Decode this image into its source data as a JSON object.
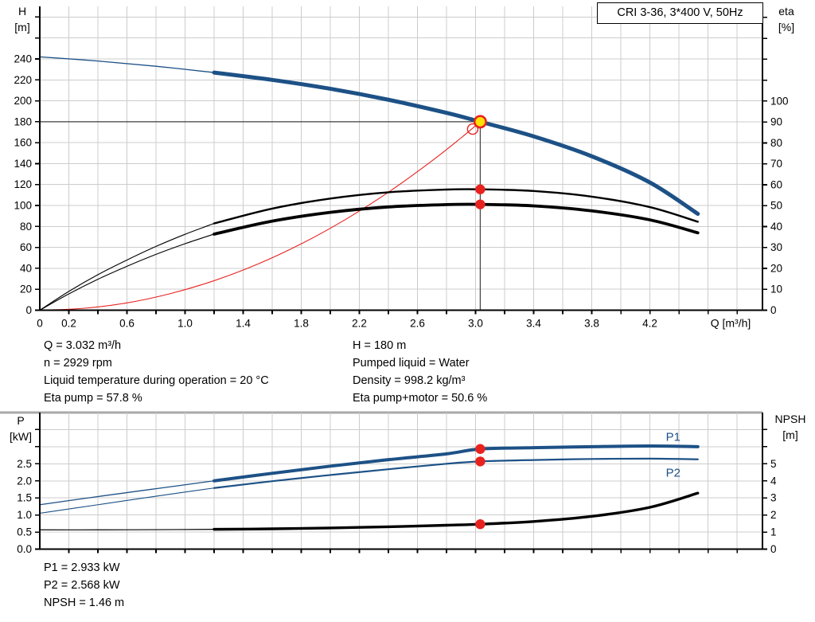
{
  "title_box": {
    "text": "CRI 3-36, 3*400 V, 50Hz"
  },
  "colors": {
    "blue": "#1d5186",
    "red": "#e8231f",
    "yellow": "#ffe200",
    "grid": "#cccccc",
    "axis": "#000000",
    "separator": "#a8a8a8",
    "crosshair": "#3d3d3d"
  },
  "info_left": {
    "lines": [
      "Q = 3.032 m³/h",
      "n = 2929 rpm",
      "Liquid temperature during operation = 20 °C",
      "Eta pump = 57.8 %"
    ]
  },
  "info_right": {
    "lines": [
      "H = 180 m",
      "Pumped liquid = Water",
      "Density = 998.2 kg/m³",
      "Eta pump+motor = 50.6 %"
    ]
  },
  "info_power": {
    "lines": [
      "P1 = 2.933 kW",
      "P2 = 2.568 kW",
      "NPSH = 1.46 m"
    ]
  },
  "chart_data": [
    {
      "type": "line",
      "name": "qh-eta-chart",
      "grid": true,
      "duty_point": {
        "q": 3.032,
        "h": 180,
        "crosshair": true
      },
      "x_axis": {
        "title": "Q [m³/h]",
        "min": 0,
        "max": 4.975,
        "grid_step": 0.2,
        "tick_step": 0.2,
        "labels": [
          [
            "0",
            0
          ],
          [
            "0.2",
            0.2
          ],
          [
            "0.6",
            0.6
          ],
          [
            "1.0",
            1.0
          ],
          [
            "1.4",
            1.4
          ],
          [
            "1.8",
            1.8
          ],
          [
            "2.2",
            2.2
          ],
          [
            "2.6",
            2.6
          ],
          [
            "3.0",
            3.0
          ],
          [
            "3.4",
            3.4
          ],
          [
            "3.8",
            3.8
          ],
          [
            "4.2",
            4.2
          ]
        ]
      },
      "left_axis": {
        "label": "H",
        "unit": "[m]",
        "min": 0,
        "max": 290.2,
        "grid_step": 20,
        "labels": [
          [
            "0",
            0
          ],
          [
            "20",
            20
          ],
          [
            "40",
            40
          ],
          [
            "60",
            60
          ],
          [
            "80",
            80
          ],
          [
            "100",
            100
          ],
          [
            "120",
            120
          ],
          [
            "140",
            140
          ],
          [
            "160",
            160
          ],
          [
            "180",
            180
          ],
          [
            "200",
            200
          ],
          [
            "220",
            220
          ],
          [
            "240",
            240
          ]
        ],
        "extra_ticks": [
          260,
          280
        ]
      },
      "right_axis": {
        "label": "eta",
        "unit": "[%]",
        "min": 0,
        "max": 145.3,
        "labels": [
          [
            "0",
            0
          ],
          [
            "10",
            10
          ],
          [
            "20",
            20
          ],
          [
            "30",
            30
          ],
          [
            "40",
            40
          ],
          [
            "50",
            50
          ],
          [
            "60",
            60
          ],
          [
            "70",
            70
          ],
          [
            "80",
            80
          ],
          [
            "90",
            90
          ],
          [
            "100",
            100
          ]
        ],
        "extra_ticks": [
          110,
          120,
          130,
          140
        ]
      },
      "series": [
        {
          "name": "system-curve",
          "axis": "left",
          "color": "red",
          "thin": 1.1,
          "thick": 1.1,
          "split": null,
          "points": [
            [
              0,
              0
            ],
            [
              0.3,
              1.8
            ],
            [
              0.6,
              7.0
            ],
            [
              0.9,
              15.9
            ],
            [
              1.2,
              28.2
            ],
            [
              1.5,
              44.0
            ],
            [
              1.8,
              63.4
            ],
            [
              2.1,
              86.3
            ],
            [
              2.4,
              112.7
            ],
            [
              2.7,
              142.7
            ],
            [
              2.9,
              164.6
            ],
            [
              3.032,
              180
            ]
          ]
        },
        {
          "name": "eta-pump-motor-curve",
          "axis": "right",
          "color": "#000000",
          "thin": 1.1,
          "thick": 3.8,
          "split": 1.2,
          "points": [
            [
              0,
              0
            ],
            [
              0.2,
              7.8
            ],
            [
              0.4,
              14.8
            ],
            [
              0.6,
              21.0
            ],
            [
              0.8,
              26.7
            ],
            [
              1.0,
              31.8
            ],
            [
              1.2,
              36.4
            ],
            [
              1.6,
              42.6
            ],
            [
              2.0,
              46.8
            ],
            [
              2.4,
              49.4
            ],
            [
              2.8,
              50.5
            ],
            [
              3.032,
              50.6
            ],
            [
              3.4,
              49.9
            ],
            [
              3.8,
              47.5
            ],
            [
              4.2,
              43.2
            ],
            [
              4.53,
              37.0
            ]
          ]
        },
        {
          "name": "eta-pump-curve",
          "axis": "right",
          "color": "#000000",
          "thin": 1.1,
          "thick": 2.4,
          "split": 1.2,
          "points": [
            [
              0,
              0
            ],
            [
              0.2,
              9.0
            ],
            [
              0.4,
              17.0
            ],
            [
              0.6,
              24.0
            ],
            [
              0.8,
              30.5
            ],
            [
              1.0,
              36.3
            ],
            [
              1.2,
              41.5
            ],
            [
              1.6,
              48.6
            ],
            [
              2.0,
              53.4
            ],
            [
              2.4,
              56.4
            ],
            [
              2.8,
              57.7
            ],
            [
              3.032,
              57.8
            ],
            [
              3.4,
              57.0
            ],
            [
              3.8,
              54.3
            ],
            [
              4.2,
              49.3
            ],
            [
              4.53,
              42.3
            ]
          ]
        },
        {
          "name": "qh-curve",
          "axis": "left",
          "color": "blue",
          "thin": 1.3,
          "thick": 5,
          "split": 1.2,
          "points": [
            [
              0,
              242
            ],
            [
              0.4,
              238
            ],
            [
              0.8,
              233
            ],
            [
              1.2,
              227
            ],
            [
              1.6,
              220
            ],
            [
              2.0,
              211.5
            ],
            [
              2.4,
              201
            ],
            [
              2.8,
              188.5
            ],
            [
              3.032,
              180
            ],
            [
              3.4,
              166
            ],
            [
              3.8,
              147
            ],
            [
              4.2,
              122
            ],
            [
              4.53,
              92
            ]
          ]
        }
      ],
      "markers": [
        {
          "name": "system-intersection-marker",
          "axis": "left",
          "q": 2.98,
          "v": 173,
          "r": 6.5,
          "fill": "none",
          "stroke": "red",
          "sw": 1.4
        },
        {
          "name": "duty-point-marker",
          "axis": "left",
          "q": 3.032,
          "v": 180,
          "r": 7.2,
          "fill": "yellow",
          "stroke": "red",
          "sw": 2.6
        },
        {
          "name": "eta-pump-duty-dot",
          "axis": "right",
          "q": 3.032,
          "v": 57.8,
          "r": 6.2,
          "fill": "red",
          "stroke": "none",
          "sw": 0
        },
        {
          "name": "eta-pump-motor-duty-dot",
          "axis": "right",
          "q": 3.032,
          "v": 50.6,
          "r": 6.2,
          "fill": "red",
          "stroke": "none",
          "sw": 0
        }
      ],
      "curve_labels": []
    },
    {
      "type": "line",
      "name": "power-npsh-chart",
      "grid": true,
      "duty_point": {
        "q": 3.032
      },
      "x_axis": {
        "title": "",
        "min": 0,
        "max": 4.975,
        "grid_step": 0.2,
        "tick_step": 0.2,
        "labels": []
      },
      "left_axis": {
        "label": "P",
        "unit": "[kW]",
        "min": 0,
        "max": 4.0,
        "grid_step": 0.5,
        "labels": [
          [
            "0.0",
            0
          ],
          [
            "0.5",
            0.5
          ],
          [
            "1.0",
            1.0
          ],
          [
            "1.5",
            1.5
          ],
          [
            "2.0",
            2.0
          ],
          [
            "2.5",
            2.5
          ]
        ],
        "extra_ticks": [
          3.0,
          3.5
        ]
      },
      "right_axis": {
        "label": "NPSH",
        "unit": "[m]",
        "min": 0,
        "max": 8.0,
        "labels": [
          [
            "0",
            0
          ],
          [
            "1",
            1
          ],
          [
            "2",
            2
          ],
          [
            "3",
            3
          ],
          [
            "4",
            4
          ],
          [
            "5",
            5
          ]
        ],
        "extra_ticks": [
          6,
          7
        ]
      },
      "series": [
        {
          "name": "npsh-curve",
          "axis": "right",
          "color": "#000000",
          "thin": 1.2,
          "thick": 3.4,
          "split": 1.2,
          "points": [
            [
              0,
              1.13
            ],
            [
              0.4,
              1.13
            ],
            [
              0.8,
              1.14
            ],
            [
              1.2,
              1.16
            ],
            [
              1.6,
              1.19
            ],
            [
              2.0,
              1.24
            ],
            [
              2.4,
              1.31
            ],
            [
              2.8,
              1.4
            ],
            [
              3.032,
              1.46
            ],
            [
              3.4,
              1.62
            ],
            [
              3.8,
              1.92
            ],
            [
              4.2,
              2.45
            ],
            [
              4.53,
              3.28
            ]
          ]
        },
        {
          "name": "p2-curve",
          "axis": "left",
          "color": "blue",
          "thin": 1.1,
          "thick": 2.2,
          "split": 1.2,
          "points": [
            [
              0,
              1.05
            ],
            [
              0.4,
              1.3
            ],
            [
              0.8,
              1.55
            ],
            [
              1.2,
              1.79
            ],
            [
              1.6,
              1.99
            ],
            [
              2.0,
              2.17
            ],
            [
              2.4,
              2.34
            ],
            [
              2.8,
              2.5
            ],
            [
              3.032,
              2.568
            ],
            [
              3.4,
              2.61
            ],
            [
              3.8,
              2.64
            ],
            [
              4.2,
              2.65
            ],
            [
              4.53,
              2.63
            ]
          ]
        },
        {
          "name": "p1-curve",
          "axis": "left",
          "color": "blue",
          "thin": 1.3,
          "thick": 4,
          "split": 1.2,
          "points": [
            [
              0,
              1.3
            ],
            [
              0.4,
              1.54
            ],
            [
              0.8,
              1.77
            ],
            [
              1.2,
              2.0
            ],
            [
              1.6,
              2.22
            ],
            [
              2.0,
              2.43
            ],
            [
              2.4,
              2.62
            ],
            [
              2.8,
              2.79
            ],
            [
              3.032,
              2.933
            ],
            [
              3.4,
              2.97
            ],
            [
              3.8,
              3.0
            ],
            [
              4.2,
              3.02
            ],
            [
              4.53,
              3.0
            ]
          ]
        }
      ],
      "markers": [
        {
          "name": "p1-duty-dot",
          "axis": "left",
          "q": 3.032,
          "v": 2.933,
          "r": 6.2,
          "fill": "red",
          "stroke": "none",
          "sw": 0
        },
        {
          "name": "p2-duty-dot",
          "axis": "left",
          "q": 3.032,
          "v": 2.568,
          "r": 6.2,
          "fill": "red",
          "stroke": "none",
          "sw": 0
        },
        {
          "name": "npsh-duty-dot",
          "axis": "right",
          "q": 3.032,
          "v": 1.46,
          "r": 6.2,
          "fill": "red",
          "stroke": "none",
          "sw": 0
        }
      ],
      "curve_labels": [
        {
          "name": "p1-label",
          "text": "P1",
          "axis": "left",
          "q": 4.36,
          "v": 3.17
        },
        {
          "name": "p2-label",
          "text": "P2",
          "axis": "left",
          "q": 4.36,
          "v": 2.12
        }
      ]
    }
  ]
}
